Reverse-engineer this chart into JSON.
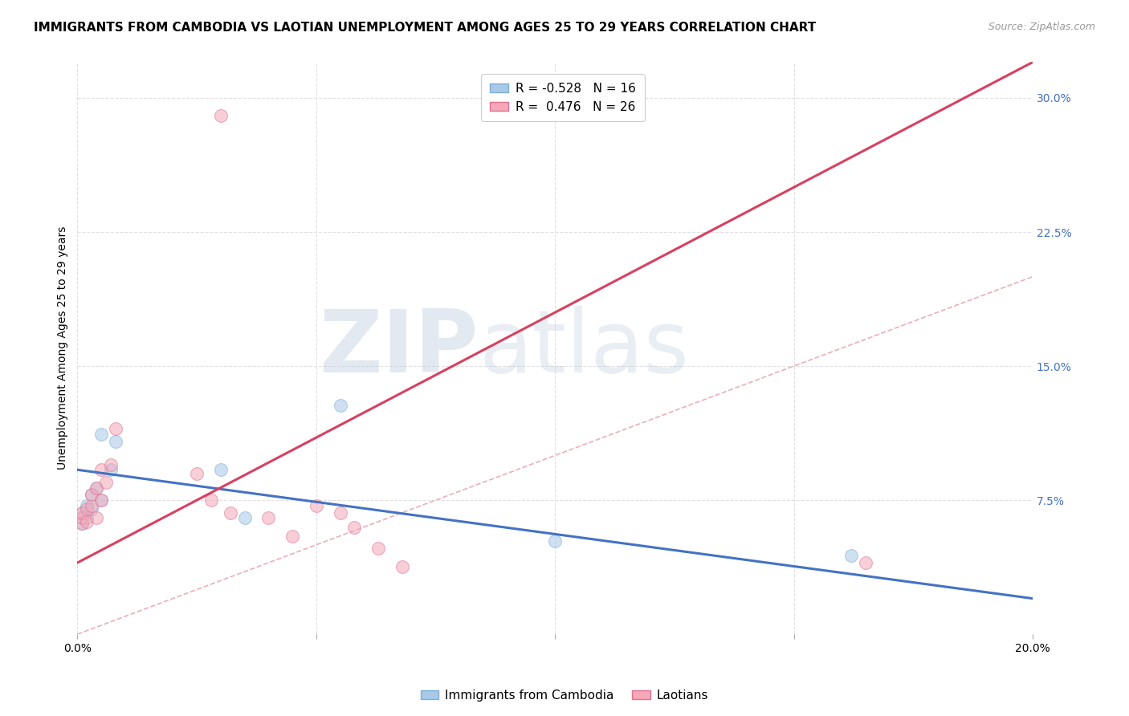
{
  "title": "IMMIGRANTS FROM CAMBODIA VS LAOTIAN UNEMPLOYMENT AMONG AGES 25 TO 29 YEARS CORRELATION CHART",
  "source": "Source: ZipAtlas.com",
  "ylabel": "Unemployment Among Ages 25 to 29 years",
  "xlim": [
    0.0,
    0.2
  ],
  "ylim": [
    0.0,
    0.32
  ],
  "yticks": [
    0.0,
    0.075,
    0.15,
    0.225,
    0.3
  ],
  "yticklabels": [
    "",
    "7.5%",
    "15.0%",
    "22.5%",
    "30.0%"
  ],
  "xtick_vals": [
    0.0,
    0.05,
    0.1,
    0.15,
    0.2
  ],
  "xticklabels": [
    "0.0%",
    "",
    "",
    "",
    "20.0%"
  ],
  "watermark_zip": "ZIP",
  "watermark_atlas": "atlas",
  "legend_entry_camb": "R = -0.528   N = 16",
  "legend_entry_laot": "R =  0.476   N = 26",
  "cambodia_scatter_x": [
    0.001,
    0.001,
    0.002,
    0.002,
    0.003,
    0.003,
    0.004,
    0.005,
    0.005,
    0.007,
    0.008,
    0.03,
    0.035,
    0.055,
    0.1,
    0.162
  ],
  "cambodia_scatter_y": [
    0.062,
    0.068,
    0.065,
    0.072,
    0.07,
    0.078,
    0.082,
    0.075,
    0.112,
    0.092,
    0.108,
    0.092,
    0.065,
    0.128,
    0.052,
    0.044
  ],
  "laotian_scatter_x": [
    0.001,
    0.001,
    0.001,
    0.002,
    0.002,
    0.003,
    0.003,
    0.004,
    0.004,
    0.005,
    0.005,
    0.006,
    0.007,
    0.008,
    0.025,
    0.028,
    0.032,
    0.04,
    0.045,
    0.05,
    0.055,
    0.058,
    0.063,
    0.068,
    0.165,
    0.03
  ],
  "laotian_scatter_y": [
    0.062,
    0.065,
    0.068,
    0.063,
    0.07,
    0.072,
    0.078,
    0.065,
    0.082,
    0.092,
    0.075,
    0.085,
    0.095,
    0.115,
    0.09,
    0.075,
    0.068,
    0.065,
    0.055,
    0.072,
    0.068,
    0.06,
    0.048,
    0.038,
    0.04,
    0.29
  ],
  "cambodia_line_x": [
    0.0,
    0.2
  ],
  "cambodia_line_y": [
    0.092,
    0.02
  ],
  "laotian_line_x": [
    0.0,
    0.2
  ],
  "laotian_line_y": [
    0.04,
    0.32
  ],
  "diagonal_line_x": [
    0.0,
    0.2
  ],
  "diagonal_line_y": [
    0.0,
    0.2
  ],
  "cambodia_color": "#a8c8e8",
  "cambodia_edge_color": "#7bafd4",
  "laotian_color": "#f4a8b8",
  "laotian_edge_color": "#e07090",
  "cambodia_line_color": "#4472c4",
  "laotian_line_color": "#d94060",
  "diagonal_color": "#e8b0b8",
  "marker_size": 130,
  "marker_alpha": 0.55,
  "title_fontsize": 11,
  "axis_label_fontsize": 10,
  "tick_fontsize": 10,
  "source_fontsize": 9,
  "background_color": "#ffffff",
  "grid_color": "#e0e0e0"
}
